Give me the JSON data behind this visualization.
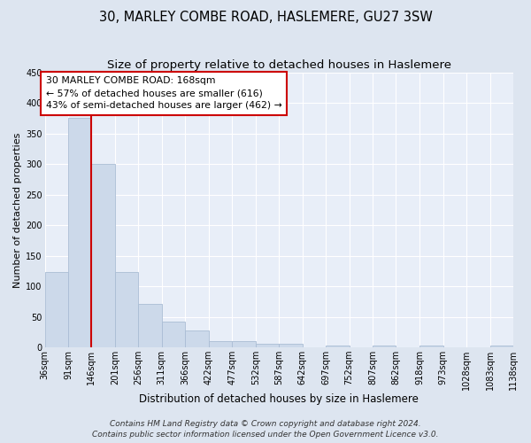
{
  "title": "30, MARLEY COMBE ROAD, HASLEMERE, GU27 3SW",
  "subtitle": "Size of property relative to detached houses in Haslemere",
  "xlabel": "Distribution of detached houses by size in Haslemere",
  "ylabel": "Number of detached properties",
  "bar_color": "#ccd9ea",
  "bar_edge_color": "#aabdd4",
  "background_color": "#e8eef8",
  "grid_color": "#ffffff",
  "annotation_box_color": "#cc0000",
  "annotation_line_color": "#cc0000",
  "fig_background": "#dde5f0",
  "bins": [
    36,
    91,
    146,
    201,
    256,
    311,
    366,
    422,
    477,
    532,
    587,
    642,
    697,
    752,
    807,
    862,
    918,
    973,
    1028,
    1083,
    1138
  ],
  "counts": [
    124,
    375,
    300,
    124,
    71,
    43,
    28,
    10,
    10,
    6,
    6,
    0,
    3,
    0,
    3,
    0,
    3,
    0,
    0,
    3
  ],
  "property_bin_index": 2,
  "annotation_title": "30 MARLEY COMBE ROAD: 168sqm",
  "annotation_line1": "← 57% of detached houses are smaller (616)",
  "annotation_line2": "43% of semi-detached houses are larger (462) →",
  "ylim": [
    0,
    450
  ],
  "yticks": [
    0,
    50,
    100,
    150,
    200,
    250,
    300,
    350,
    400,
    450
  ],
  "footer_line1": "Contains HM Land Registry data © Crown copyright and database right 2024.",
  "footer_line2": "Contains public sector information licensed under the Open Government Licence v3.0.",
  "title_fontsize": 10.5,
  "subtitle_fontsize": 9.5,
  "xlabel_fontsize": 8.5,
  "ylabel_fontsize": 8,
  "tick_fontsize": 7,
  "footer_fontsize": 6.5,
  "annotation_fontsize": 7.8
}
